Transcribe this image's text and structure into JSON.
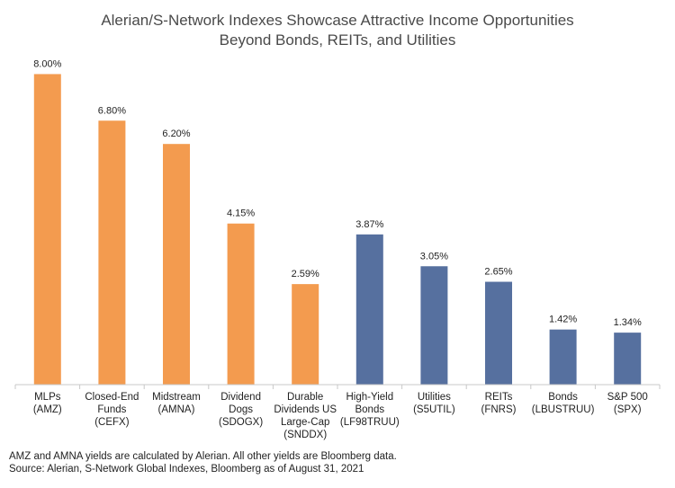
{
  "chart_data": {
    "type": "bar",
    "title_lines": [
      "Alerian/S-Network Indexes Showcase Attractive Income Opportunities",
      "Beyond Bonds, REITs, and Utilities"
    ],
    "xlabel": "",
    "ylabel": "",
    "ylim": [
      0,
      8.45
    ],
    "grid": false,
    "legend": "none",
    "categories": [
      [
        "MLPs",
        "(AMZ)"
      ],
      [
        "Closed-End",
        "Funds",
        "(CEFX)"
      ],
      [
        "Midstream",
        "(AMNA)"
      ],
      [
        "Dividend",
        "Dogs",
        "(SDOGX)"
      ],
      [
        "Durable",
        "Dividends US",
        "Large-Cap",
        "(SNDDX)"
      ],
      [
        "High-Yield",
        "Bonds",
        "(LF98TRUU)"
      ],
      [
        "Utilities",
        "(S5UTIL)"
      ],
      [
        "REITs",
        "(FNRS)"
      ],
      [
        "Bonds",
        "(LBUSTRUU)"
      ],
      [
        "S&P 500",
        "(SPX)"
      ]
    ],
    "values": [
      8.0,
      6.8,
      6.2,
      4.15,
      2.59,
      3.87,
      3.05,
      2.65,
      1.42,
      1.34
    ],
    "value_labels": [
      "8.00%",
      "6.80%",
      "6.20%",
      "4.15%",
      "2.59%",
      "3.87%",
      "3.05%",
      "2.65%",
      "1.42%",
      "1.34%"
    ],
    "bar_colors": [
      "#f39b4f",
      "#f39b4f",
      "#f39b4f",
      "#f39b4f",
      "#f39b4f",
      "#56709f",
      "#56709f",
      "#56709f",
      "#56709f",
      "#56709f"
    ]
  },
  "footnotes": [
    "AMZ and AMNA yields are calculated by Alerian. All other yields are Bloomberg data.",
    "Source: Alerian, S-Network Global Indexes, Bloomberg as of August 31, 2021"
  ]
}
